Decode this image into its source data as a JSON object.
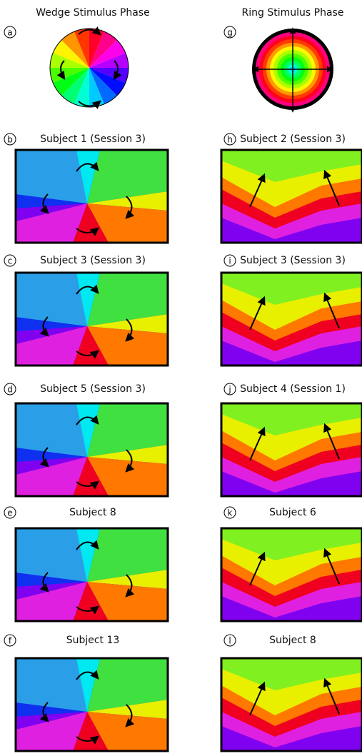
{
  "panels": [
    {
      "letter": "a",
      "title": "Wedge Stimulus Phase"
    },
    {
      "letter": "b",
      "title": "Subject 1 (Session 3)"
    },
    {
      "letter": "c",
      "title": "Subject 3 (Session 3)"
    },
    {
      "letter": "d",
      "title": "Subject 5 (Session 3)"
    },
    {
      "letter": "e",
      "title": "Subject 8"
    },
    {
      "letter": "f",
      "title": "Subject 13"
    },
    {
      "letter": "g",
      "title": "Ring Stimulus Phase"
    },
    {
      "letter": "h",
      "title": "Subject 2 (Session 3)"
    },
    {
      "letter": "i",
      "title": "Subject 3 (Session 3)"
    },
    {
      "letter": "j",
      "title": "Subject 4 (Session 1)"
    },
    {
      "letter": "k",
      "title": "Subject 6"
    },
    {
      "letter": "l",
      "title": "Subject 8"
    }
  ]
}
